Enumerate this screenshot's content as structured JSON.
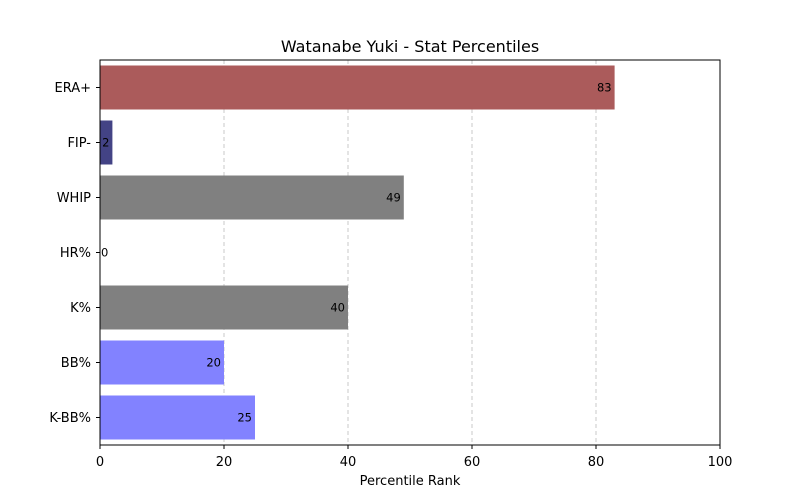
{
  "chart_data": {
    "type": "bar",
    "orientation": "horizontal",
    "title": "Watanabe Yuki - Stat Percentiles",
    "xlabel": "Percentile Rank",
    "ylabel": "",
    "xlim": [
      0,
      100
    ],
    "xticks": [
      0,
      20,
      40,
      60,
      80,
      100
    ],
    "grid": "x-dashed",
    "categories": [
      "ERA+",
      "FIP-",
      "WHIP",
      "HR%",
      "K%",
      "BB%",
      "K-BB%"
    ],
    "values": [
      83,
      2,
      49,
      0,
      40,
      20,
      25
    ],
    "colors": [
      "#ab5b5b",
      "#434385",
      "#808080",
      "#808080",
      "#808080",
      "#8282ff",
      "#8282ff"
    ],
    "data_labels": [
      "83",
      "2",
      "49",
      "0",
      "40",
      "20",
      "25"
    ]
  }
}
